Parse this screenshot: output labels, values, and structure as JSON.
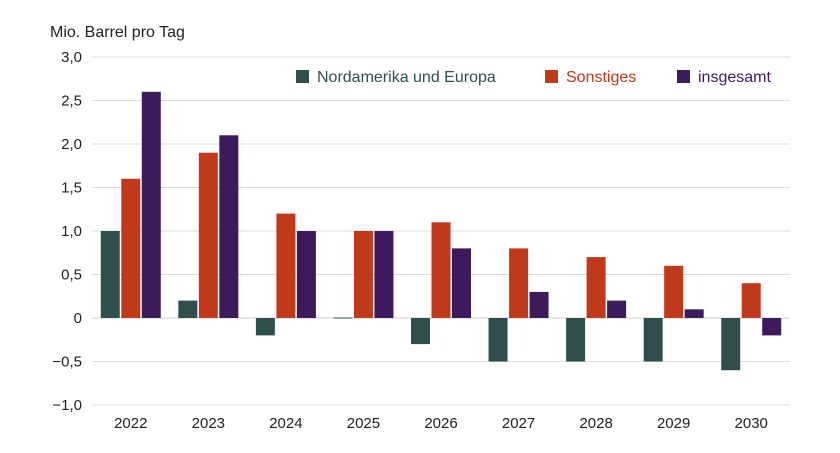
{
  "chart_data": {
    "type": "bar",
    "ylabel": "Mio. Barrel pro Tag",
    "ylim": [
      -1.0,
      3.0
    ],
    "yticks": [
      -1.0,
      -0.5,
      0,
      0.5,
      1.0,
      1.5,
      2.0,
      2.5,
      3.0
    ],
    "ytick_labels": [
      "−1,0",
      "−0,5",
      "0",
      "0,5",
      "1,0",
      "1,5",
      "2,0",
      "2,5",
      "3,0"
    ],
    "categories": [
      "2022",
      "2023",
      "2024",
      "2025",
      "2026",
      "2027",
      "2028",
      "2029",
      "2030"
    ],
    "grid": true,
    "legend_position": "top-right",
    "series": [
      {
        "name": "Nordamerika und Europa",
        "color": "#2f4f4f",
        "values": [
          1.0,
          0.2,
          -0.2,
          0.0,
          -0.3,
          -0.5,
          -0.5,
          -0.5,
          -0.6
        ]
      },
      {
        "name": "Sonstiges",
        "color": "#c0391b",
        "values": [
          1.6,
          1.9,
          1.2,
          1.0,
          1.1,
          0.8,
          0.7,
          0.6,
          0.4
        ]
      },
      {
        "name": "insgesamt",
        "color": "#3d1a5b",
        "values": [
          2.6,
          2.1,
          1.0,
          1.0,
          0.8,
          0.3,
          0.2,
          0.1,
          -0.2
        ]
      }
    ]
  }
}
